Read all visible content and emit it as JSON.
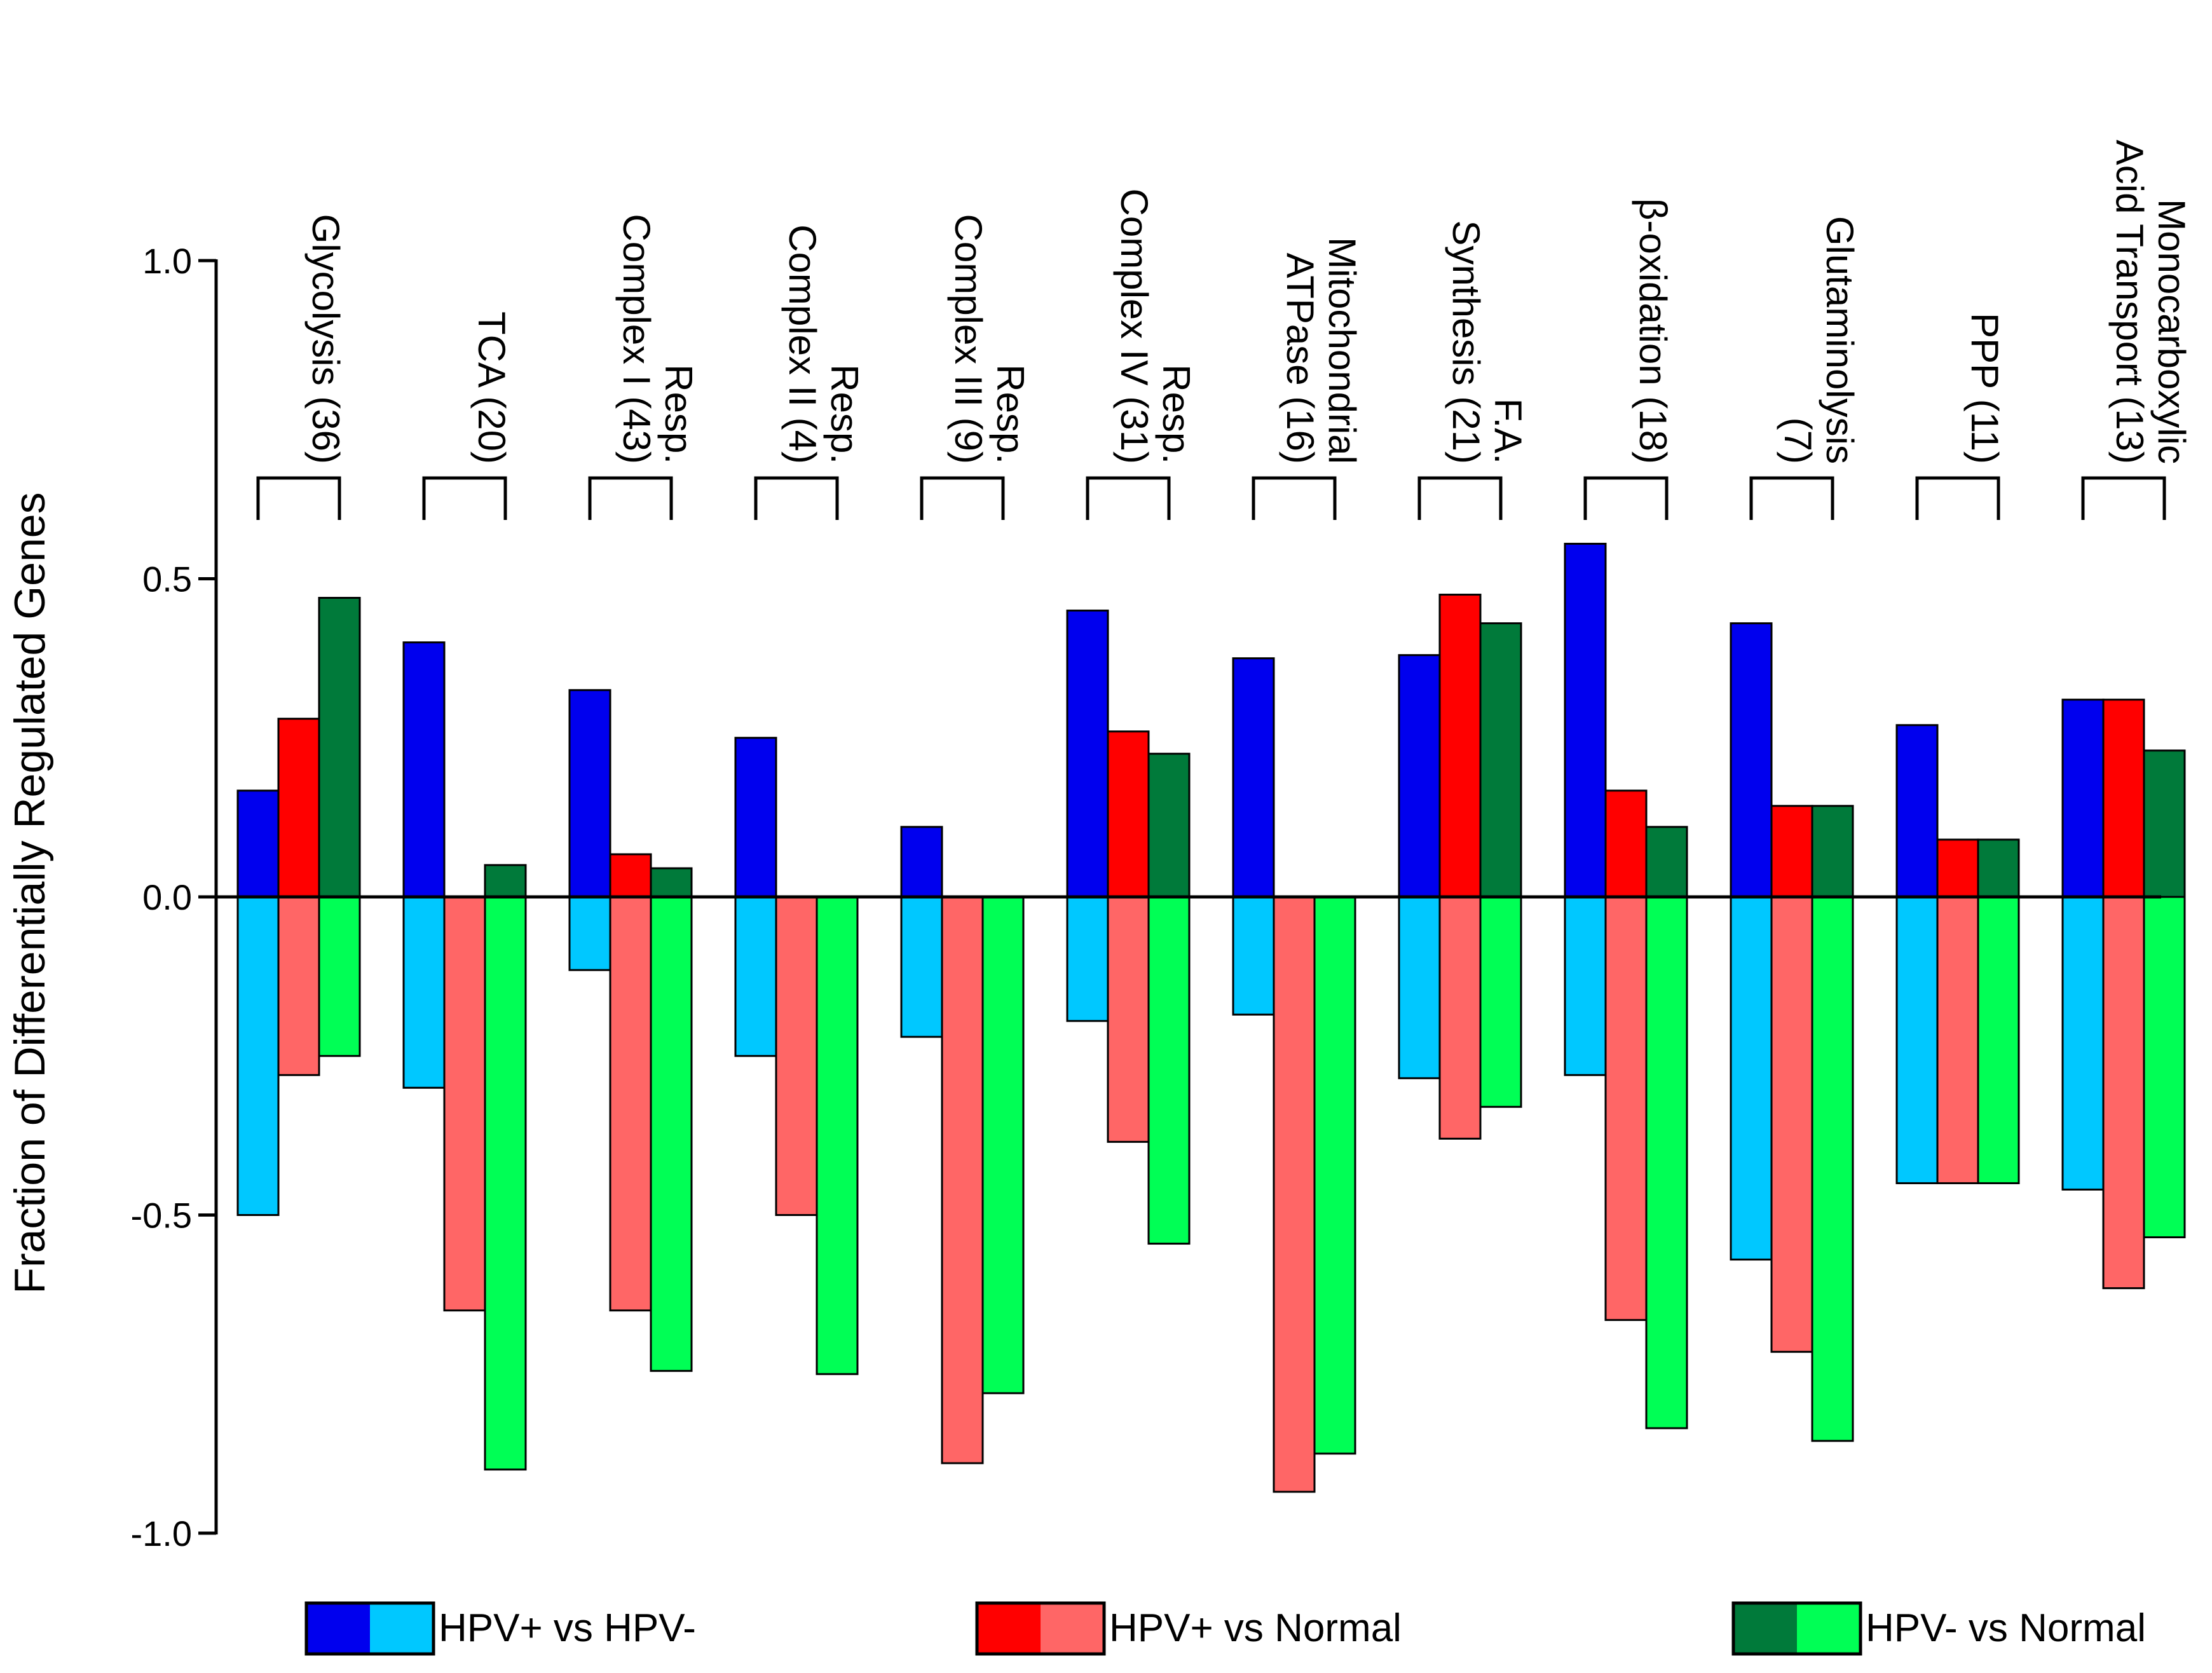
{
  "chart_data": {
    "type": "bar",
    "title": "",
    "xlabel": "",
    "ylabel": "Fraction of Differentially Regulated Genes",
    "ylim": [
      -1.0,
      1.0
    ],
    "yticks": [
      {
        "value": 1.0,
        "label": "1.0"
      },
      {
        "value": 0.5,
        "label": "0.5"
      },
      {
        "value": 0.0,
        "label": "0.0"
      },
      {
        "value": -0.5,
        "label": "-0.5"
      },
      {
        "value": -1.0,
        "label": "-1.0"
      }
    ],
    "categories": [
      {
        "lines": [
          "Glycolysis (36)"
        ]
      },
      {
        "lines": [
          "TCA (20)"
        ]
      },
      {
        "lines": [
          "Resp.",
          "Complex I (43)"
        ]
      },
      {
        "lines": [
          "Resp.",
          "Complex II (4)"
        ]
      },
      {
        "lines": [
          "Resp.",
          "Complex III (9)"
        ]
      },
      {
        "lines": [
          "Resp.",
          "Complex IV (31)"
        ]
      },
      {
        "lines": [
          "Mitochondrial",
          "ATPase (16)"
        ]
      },
      {
        "lines": [
          "F.A.",
          "Synthesis (21)"
        ]
      },
      {
        "lines": [
          "β-oxidation (18)"
        ]
      },
      {
        "lines": [
          "Glutaminolysis",
          "(7)"
        ]
      },
      {
        "lines": [
          "PPP (11)"
        ]
      },
      {
        "lines": [
          "Monocarboxylic",
          "Acid Transport (13)"
        ]
      }
    ],
    "series": [
      {
        "name": "HPV+ vs HPV-",
        "up_color": "#0000ee",
        "down_color": "#00c8ff",
        "up": [
          0.167,
          0.4,
          0.325,
          0.25,
          0.11,
          0.45,
          0.375,
          0.38,
          0.555,
          0.43,
          0.27,
          0.31
        ],
        "down": [
          -0.5,
          -0.3,
          -0.115,
          -0.25,
          -0.22,
          -0.195,
          -0.185,
          -0.285,
          -0.28,
          -0.57,
          -0.45,
          -0.46
        ]
      },
      {
        "name": "HPV+ vs Normal",
        "up_color": "#ff0000",
        "down_color": "#ff6666",
        "up": [
          0.28,
          0.0,
          0.067,
          0.0,
          0.0,
          0.26,
          0.0,
          0.475,
          0.167,
          0.143,
          0.09,
          0.31
        ],
        "down": [
          -0.28,
          -0.65,
          -0.65,
          -0.5,
          -0.89,
          -0.385,
          -0.935,
          -0.38,
          -0.665,
          -0.715,
          -0.45,
          -0.615
        ]
      },
      {
        "name": "HPV- vs Normal",
        "up_color": "#007a3a",
        "down_color": "#00ff55",
        "up": [
          0.47,
          0.05,
          0.045,
          0.0,
          0.0,
          0.225,
          0.0,
          0.43,
          0.11,
          0.143,
          0.09,
          0.23
        ],
        "down": [
          -0.25,
          -0.9,
          -0.745,
          -0.75,
          -0.78,
          -0.545,
          -0.875,
          -0.33,
          -0.835,
          -0.855,
          -0.45,
          -0.535
        ]
      }
    ],
    "legend": [
      {
        "label": "HPV+ vs HPV-"
      },
      {
        "label": "HPV+ vs Normal"
      },
      {
        "label": "HPV- vs Normal"
      }
    ],
    "legend_position": "bottom",
    "grid": false
  }
}
